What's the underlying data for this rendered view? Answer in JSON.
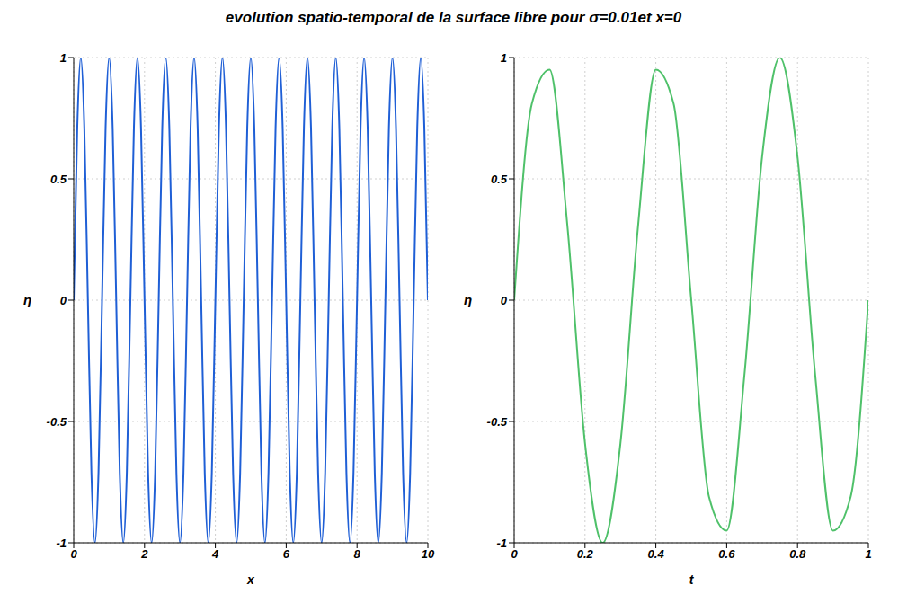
{
  "chart_data": [
    {
      "type": "line",
      "title": "evolution spatio-temporal de la surface libre pour σ=0.01et x=0",
      "xlabel": "x",
      "ylabel": "η",
      "x": [
        0,
        0.1,
        0.2,
        0.3,
        0.4,
        0.5,
        0.6,
        0.7,
        0.8,
        0.9,
        1,
        1.1,
        1.2,
        1.3,
        1.4,
        1.5,
        1.6,
        1.7,
        1.8,
        1.9,
        2,
        2.1,
        2.2,
        2.3,
        2.4,
        2.5,
        2.6,
        2.7,
        2.8,
        2.9,
        3,
        3.1,
        3.2,
        3.3,
        3.4,
        3.5,
        3.6,
        3.7,
        3.8,
        3.9,
        4,
        4.1,
        4.2,
        4.3,
        4.4,
        4.5,
        4.6,
        4.7,
        4.8,
        4.9,
        5,
        5.1,
        5.2,
        5.3,
        5.4,
        5.5,
        5.6,
        5.7,
        5.8,
        5.9,
        6,
        6.1,
        6.2,
        6.3,
        6.4,
        6.5,
        6.6,
        6.7,
        6.8,
        6.9,
        7,
        7.1,
        7.2,
        7.3,
        7.4,
        7.5,
        7.6,
        7.7,
        7.8,
        7.9,
        8,
        8.1,
        8.2,
        8.3,
        8.4,
        8.5,
        8.6,
        8.7,
        8.8,
        8.9,
        9,
        9.1,
        9.2,
        9.3,
        9.4,
        9.5,
        9.6,
        9.7,
        9.8,
        9.9,
        10
      ],
      "series": [
        {
          "color": "#1f5fd6",
          "values": [
            0,
            0.71,
            1,
            0.71,
            0,
            -0.71,
            -1,
            -0.71,
            0,
            0.71,
            1,
            0.71,
            0,
            -0.71,
            -1,
            -0.71,
            0,
            0.71,
            1,
            0.71,
            0,
            -0.71,
            -1,
            -0.71,
            0,
            0.71,
            1,
            0.71,
            0,
            -0.71,
            -1,
            -0.71,
            0,
            0.71,
            1,
            0.71,
            0,
            -0.71,
            -1,
            -0.71,
            0,
            0.71,
            1,
            0.71,
            0,
            -0.71,
            -1,
            -0.71,
            0,
            0.71,
            1,
            0.71,
            0,
            -0.71,
            -1,
            -0.71,
            0,
            0.71,
            1,
            0.71,
            0,
            -0.71,
            -1,
            -0.71,
            0,
            0.71,
            1,
            0.71,
            0,
            -0.71,
            -1,
            -0.71,
            0,
            0.71,
            1,
            0.71,
            0,
            -0.71,
            -1,
            -0.71,
            0,
            0.71,
            1,
            0.71,
            0,
            -0.71,
            -1,
            -0.71,
            0,
            0.71,
            1,
            0.71,
            0,
            -0.71,
            -1,
            -0.71,
            0,
            0.71,
            1,
            0.71,
            0
          ]
        }
      ],
      "xlim": [
        0,
        10
      ],
      "xticks": [
        0,
        2,
        4,
        6,
        8,
        10
      ],
      "ylim": [
        -1,
        1
      ],
      "yticks": [
        -1,
        -0.5,
        0,
        0.5,
        1
      ],
      "grid": true
    },
    {
      "type": "line",
      "xlabel": "t",
      "ylabel": "η",
      "x": [
        0,
        0.05,
        0.1,
        0.15,
        0.2,
        0.25,
        0.3,
        0.35,
        0.4,
        0.45,
        0.5,
        0.55,
        0.6,
        0.65,
        0.7,
        0.75,
        0.8,
        0.85,
        0.9,
        0.95,
        1
      ],
      "series": [
        {
          "color": "#4fc16a",
          "values": [
            0,
            0.81,
            0.95,
            0.31,
            -0.59,
            -1,
            -0.59,
            0.31,
            0.95,
            0.81,
            0,
            -0.81,
            -0.95,
            -0.31,
            0.59,
            1,
            0.59,
            -0.31,
            -0.95,
            -0.81,
            0
          ]
        }
      ],
      "xlim": [
        0,
        1
      ],
      "xticks": [
        0,
        0.2,
        0.4,
        0.6,
        0.8,
        1
      ],
      "ylim": [
        -1,
        1
      ],
      "yticks": [
        -1,
        -0.5,
        0,
        0.5,
        1
      ],
      "grid": true
    }
  ]
}
